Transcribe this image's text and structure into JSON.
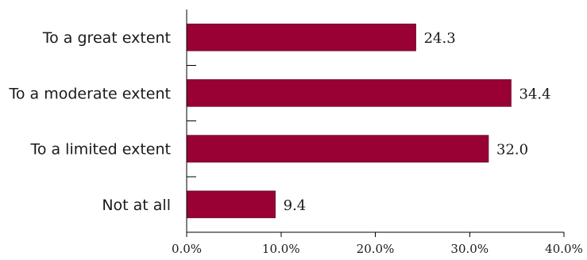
{
  "chart_data": {
    "type": "bar",
    "orientation": "horizontal",
    "categories": [
      "To a great extent",
      "To a moderate extent",
      "To a limited extent",
      "Not at all"
    ],
    "values": [
      24.3,
      34.4,
      32.0,
      9.4
    ],
    "value_labels": [
      "24.3",
      "34.4",
      "32.0",
      "9.4"
    ],
    "xlim": [
      0,
      40
    ],
    "x_ticks": [
      0,
      10,
      20,
      30,
      40
    ],
    "x_tick_labels": [
      "0.0%",
      "10.0%",
      "20.0%",
      "30.0%",
      "40.0%"
    ],
    "grid": false,
    "legend": "none",
    "bar_color": "#990033"
  }
}
